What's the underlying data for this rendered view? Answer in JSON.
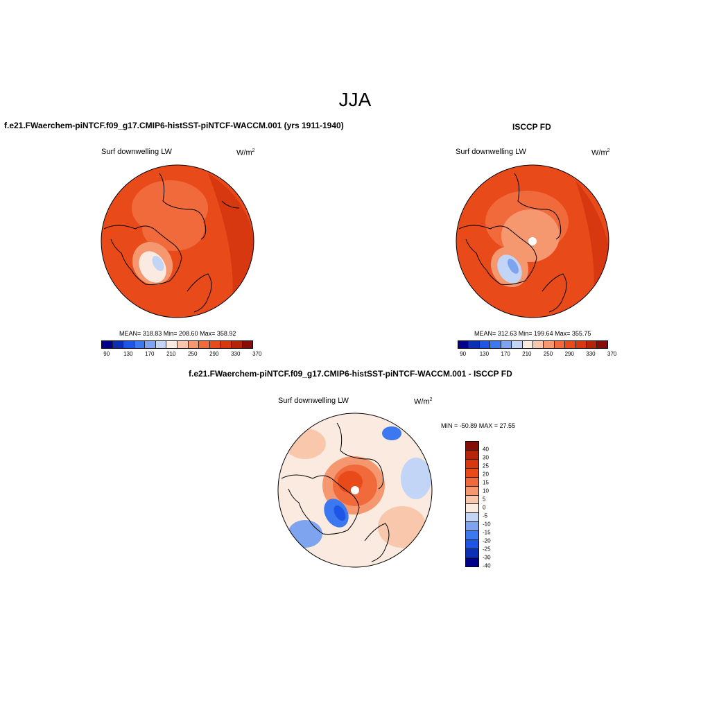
{
  "season": "JJA",
  "panels": {
    "model": {
      "title": "f.e21.FWaerchem-piNTCF.f09_g17.CMIP6-histSST-piNTCF-WACCM.001 (yrs 1911-1940)",
      "variable": "Surf downwelling LW",
      "unit": "W/m",
      "unit_sup": "2",
      "stats": "MEAN= 318.83  Min= 208.60  Max= 358.92"
    },
    "obs": {
      "title": "ISCCP FD",
      "variable": "Surf downwelling LW",
      "unit": "W/m",
      "unit_sup": "2",
      "stats": "MEAN= 312.63  Min= 199.64  Max= 355.75"
    },
    "diff": {
      "title": "f.e21.FWaerchem-piNTCF.f09_g17.CMIP6-histSST-piNTCF-WACCM.001 - ISCCP FD",
      "variable": "Surf downwelling LW",
      "unit": "W/m",
      "unit_sup": "2",
      "stats": "MIN = -50.89 MAX =  27.55"
    }
  },
  "abs_colorbar": {
    "colors": [
      "#00008b",
      "#0b2fb5",
      "#1f55e6",
      "#3c78f0",
      "#7ea4ef",
      "#c2d5f7",
      "#fbeadf",
      "#f9c8ac",
      "#f59870",
      "#f16a3c",
      "#e84a1a",
      "#d73810",
      "#b52308",
      "#850d05"
    ],
    "tick_labels": [
      "90",
      "130",
      "170",
      "210",
      "250",
      "290",
      "330",
      "370"
    ]
  },
  "diff_colorbar": {
    "colors": [
      "#850d05",
      "#b52308",
      "#d73810",
      "#e84a1a",
      "#f16a3c",
      "#f59870",
      "#f9c8ac",
      "#fbeadf",
      "#c2d5f7",
      "#7ea4ef",
      "#3c78f0",
      "#1f55e6",
      "#0b2fb5",
      "#00008b"
    ],
    "tick_labels": [
      "40",
      "30",
      "25",
      "20",
      "15",
      "10",
      "5",
      "0",
      "-5",
      "-10",
      "-15",
      "-20",
      "-25",
      "-30",
      "-40"
    ]
  }
}
